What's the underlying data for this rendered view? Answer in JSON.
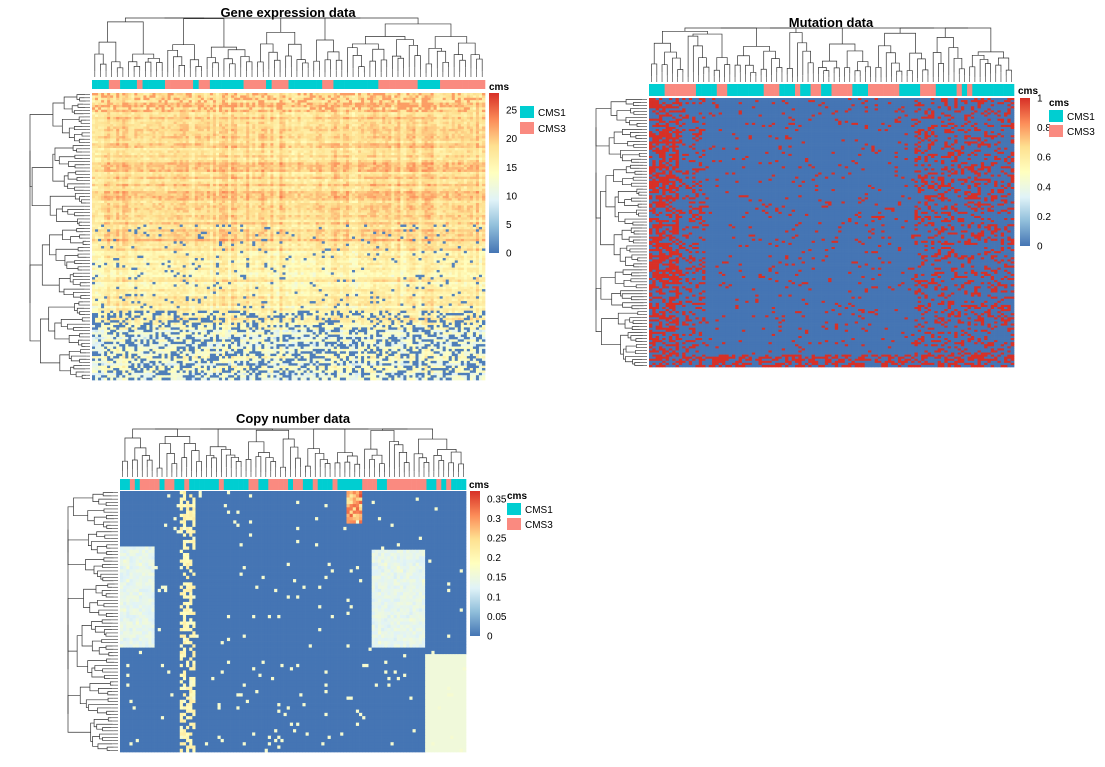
{
  "chart_data": [
    {
      "type": "heatmap",
      "title": "Gene expression data",
      "annotation": {
        "title": "cms",
        "levels": [
          "CMS1",
          "CMS3"
        ],
        "colors": [
          "#00CED1",
          "#FA8A80"
        ]
      },
      "colorbar": {
        "ticks": [
          "0",
          "5",
          "10",
          "15",
          "20",
          "25"
        ],
        "range": [
          0,
          28
        ]
      },
      "colormap": [
        "#4575B4",
        "#91BFDB",
        "#E0F3F8",
        "#FFFFBF",
        "#FEE090",
        "#FC8D59",
        "#D73027"
      ],
      "columns": 130,
      "rows": 120,
      "legend_position": "right"
    },
    {
      "type": "heatmap",
      "title": "Mutation data",
      "annotation": {
        "title": "cms",
        "levels": [
          "CMS1",
          "CMS3"
        ],
        "colors": [
          "#00CED1",
          "#FA8A80"
        ]
      },
      "colorbar": {
        "ticks": [
          "0",
          "0.2",
          "0.4",
          "0.6",
          "0.8",
          "1"
        ],
        "range": [
          0,
          1
        ]
      },
      "colormap": [
        "#4575B4",
        "#91BFDB",
        "#E0F3F8",
        "#FFFFBF",
        "#FEE090",
        "#FC8D59",
        "#D73027"
      ],
      "columns": 110,
      "rows": 130,
      "legend_position": "right"
    },
    {
      "type": "heatmap",
      "title": "Copy number data",
      "annotation": {
        "title": "cms",
        "levels": [
          "CMS1",
          "CMS3"
        ],
        "colors": [
          "#00CED1",
          "#FA8A80"
        ]
      },
      "colorbar": {
        "ticks": [
          "0",
          "0.05",
          "0.1",
          "0.15",
          "0.2",
          "0.25",
          "0.3",
          "0.35"
        ],
        "range": [
          0,
          0.37
        ]
      },
      "colormap": [
        "#4575B4",
        "#91BFDB",
        "#E0F3F8",
        "#FFFFBF",
        "#FEE090",
        "#FC8D59",
        "#D73027"
      ],
      "columns": 110,
      "rows": 80,
      "legend_position": "right"
    }
  ]
}
